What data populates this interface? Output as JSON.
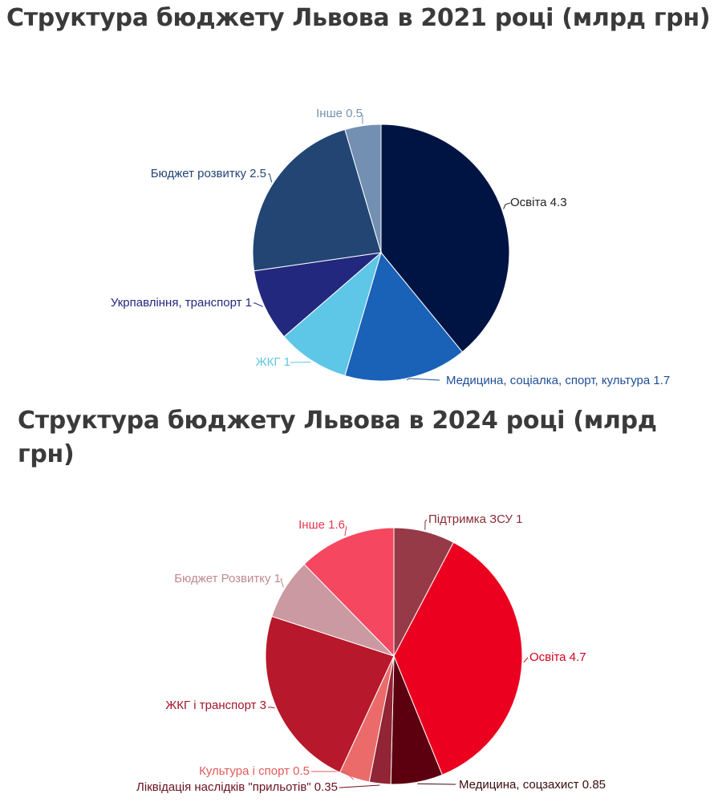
{
  "chart_data": [
    {
      "type": "pie",
      "title": "Структура бюджету Львова в 2021 році (млрд грн)",
      "slices": [
        {
          "label": "Освіта",
          "value": 4.3,
          "color": "#001443",
          "label_color": "#222222"
        },
        {
          "label": "Медицина, соціалка, спорт, культура",
          "value": 1.7,
          "color": "#1a62b7",
          "label_color": "#1f4d97"
        },
        {
          "label": "ЖКГ",
          "value": 1,
          "color": "#5ec6e6",
          "label_color": "#5ec6e6"
        },
        {
          "label": "Укрпавління, транспорт",
          "value": 1,
          "color": "#23287f",
          "label_color": "#23287f"
        },
        {
          "label": "Бюджет розвитку",
          "value": 2.5,
          "color": "#224574",
          "label_color": "#224574"
        },
        {
          "label": "Інше",
          "value": 0.5,
          "color": "#7390b3",
          "label_color": "#7390b3"
        }
      ]
    },
    {
      "type": "pie",
      "title": "Структура бюджету Львова в 2024 році (млрд грн)",
      "slices": [
        {
          "label": "Підтримка ЗСУ",
          "value": 1,
          "color": "#963a47",
          "label_color": "#8a2a35"
        },
        {
          "label": "Освіта",
          "value": 4.7,
          "color": "#eb001f",
          "label_color": "#d3001c"
        },
        {
          "label": "Медицина, соцзахист",
          "value": 0.85,
          "color": "#5c0010",
          "label_color": "#3a0a10"
        },
        {
          "label": "Ліквідація наслідків \"прильотів\"",
          "value": 0.35,
          "color": "#912435",
          "label_color": "#6a1020"
        },
        {
          "label": "Культура і спорт",
          "value": 0.5,
          "color": "#eb6b6b",
          "label_color": "#e35a5a"
        },
        {
          "label": "ЖКГ і транспорт",
          "value": 3,
          "color": "#b8182b",
          "label_color": "#a3142a"
        },
        {
          "label": "Бюджет Розвитку",
          "value": 1,
          "color": "#cb99a1",
          "label_color": "#c08a92"
        },
        {
          "label": "Інше",
          "value": 1.6,
          "color": "#f54760",
          "label_color": "#e8354f"
        }
      ]
    }
  ]
}
